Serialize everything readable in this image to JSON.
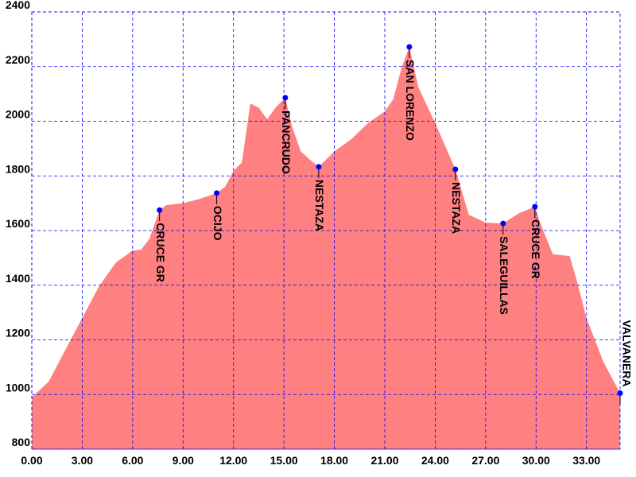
{
  "chart_data": {
    "type": "area",
    "profile": {
      "color": "#ff8080",
      "x": [
        0,
        1,
        2,
        3,
        4,
        5,
        6,
        6.5,
        7,
        7.6,
        8,
        9,
        10,
        11,
        11.5,
        12,
        12.5,
        13,
        13.5,
        14,
        14.5,
        15.08,
        15.5,
        16,
        16.5,
        17.07,
        18,
        19,
        20,
        21,
        21.5,
        22,
        22.46,
        23,
        24,
        25.2,
        26,
        27,
        28.04,
        29,
        29.93,
        30.3,
        31,
        32,
        32.5,
        33,
        34,
        35
      ],
      "values": [
        990,
        1047,
        1164,
        1280,
        1396,
        1483,
        1527,
        1530,
        1570,
        1675,
        1693,
        1700,
        1716,
        1737,
        1760,
        1818,
        1850,
        2065,
        2050,
        2007,
        2050,
        2086,
        1978,
        1890,
        1862,
        1833,
        1890,
        1934,
        1993,
        2036,
        2080,
        2196,
        2272,
        2124,
        1993,
        1824,
        1658,
        1629,
        1626,
        1664,
        1687,
        1620,
        1513,
        1507,
        1400,
        1280,
        1120,
        1005
      ]
    },
    "waypoints": {
      "color": "#0000ff",
      "names": [
        "CRUCE GR",
        "OCIJO",
        "PANCRUDO",
        "NESTAZA",
        "SAN LORENZO",
        "NESTAZA",
        "SALEGUILLAS",
        "CRUCE GR",
        "VALVANERA"
      ],
      "x": [
        7.6,
        11,
        15.08,
        17.07,
        22.46,
        25.2,
        28.04,
        29.93,
        35
      ],
      "values": [
        1675,
        1737,
        2086,
        1833,
        2272,
        1824,
        1626,
        1687,
        1005
      ]
    },
    "xlim": [
      0,
      35
    ],
    "ylim": [
      800,
      2400
    ],
    "xticks": [
      {
        "value": 0,
        "label": "0.00"
      },
      {
        "value": 3,
        "label": "3.00"
      },
      {
        "value": 6,
        "label": "6.00"
      },
      {
        "value": 9,
        "label": "9.00"
      },
      {
        "value": 12,
        "label": "12.00"
      },
      {
        "value": 15,
        "label": "15.00"
      },
      {
        "value": 18,
        "label": "18.00"
      },
      {
        "value": 21,
        "label": "21.00"
      },
      {
        "value": 24,
        "label": "24.00"
      },
      {
        "value": 27,
        "label": "27.00"
      },
      {
        "value": 30,
        "label": "30.00"
      },
      {
        "value": 33,
        "label": "33.00"
      }
    ],
    "yticks": [
      800,
      1000,
      1200,
      1400,
      1600,
      1800,
      2000,
      2200,
      2400
    ],
    "grid": true,
    "grid_color": "#0000ff"
  }
}
